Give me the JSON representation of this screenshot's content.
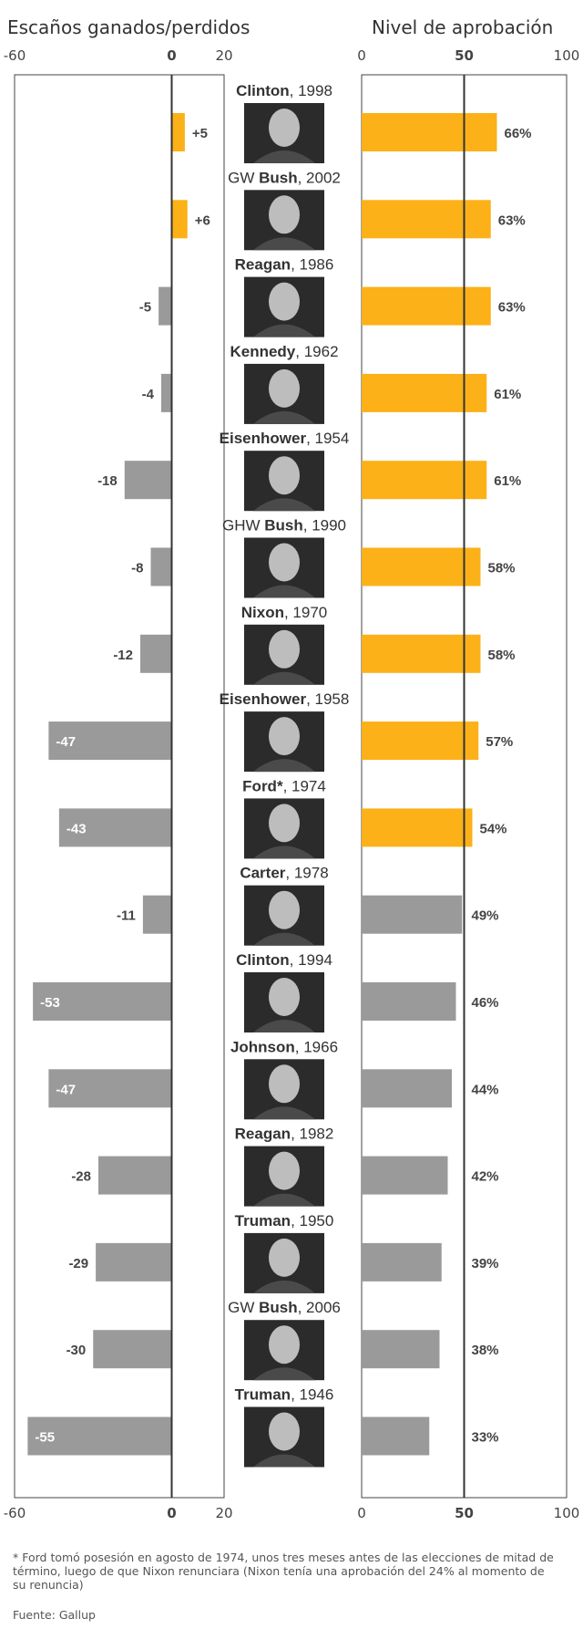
{
  "left_title": "Escaños ganados/perdidos",
  "right_title": "Nivel de aprobación",
  "left_ticks": [
    "-60",
    "0",
    "20"
  ],
  "right_ticks": [
    "0",
    "50",
    "100"
  ],
  "colors": {
    "above_50": "#fbb117",
    "below_50": "#9a9a9a",
    "axis": "#333333"
  },
  "chart_data": [
    {
      "type": "bar",
      "orientation": "horizontal",
      "title": "Escaños ganados/perdidos",
      "xlim": [
        -60,
        20
      ],
      "categories": [
        "Clinton, 1998",
        "GW Bush, 2002",
        "Reagan, 1986",
        "Kennedy, 1962",
        "Eisenhower, 1954",
        "GHW Bush, 1990",
        "Nixon, 1970",
        "Eisenhower, 1958",
        "Ford*, 1974",
        "Carter, 1978",
        "Clinton, 1994",
        "Johnson, 1966",
        "Reagan, 1982",
        "Truman, 1950",
        "GW Bush, 2006",
        "Truman, 1946"
      ],
      "values": [
        5,
        6,
        -5,
        -4,
        -18,
        -8,
        -12,
        -47,
        -43,
        -11,
        -53,
        -47,
        -28,
        -29,
        -30,
        -55
      ],
      "labels": [
        "+5",
        "+6",
        "-5",
        "-4",
        "-18",
        "-8",
        "-12",
        "-47",
        "-43",
        "-11",
        "-53",
        "-47",
        "-28",
        "-29",
        "-30",
        "-55"
      ]
    },
    {
      "type": "bar",
      "orientation": "horizontal",
      "title": "Nivel de aprobación",
      "xlim": [
        0,
        100
      ],
      "categories": [
        "Clinton, 1998",
        "GW Bush, 2002",
        "Reagan, 1986",
        "Kennedy, 1962",
        "Eisenhower, 1954",
        "GHW Bush, 1990",
        "Nixon, 1970",
        "Eisenhower, 1958",
        "Ford*, 1974",
        "Carter, 1978",
        "Clinton, 1994",
        "Johnson, 1966",
        "Reagan, 1982",
        "Truman, 1950",
        "GW Bush, 2006",
        "Truman, 1946"
      ],
      "values": [
        66,
        63,
        63,
        61,
        61,
        58,
        58,
        57,
        54,
        49,
        46,
        44,
        42,
        39,
        38,
        33
      ],
      "labels": [
        "66%",
        "63%",
        "63%",
        "61%",
        "61%",
        "58%",
        "58%",
        "57%",
        "54%",
        "49%",
        "46%",
        "44%",
        "42%",
        "39%",
        "38%",
        "33%"
      ]
    }
  ],
  "presidents": [
    {
      "name": "Clinton",
      "prefix": "",
      "suffix": "",
      "year": ", 1998"
    },
    {
      "name": "Bush",
      "prefix": "GW ",
      "suffix": "",
      "year": ", 2002"
    },
    {
      "name": "Reagan",
      "prefix": "",
      "suffix": "",
      "year": ", 1986"
    },
    {
      "name": "Kennedy",
      "prefix": "",
      "suffix": "",
      "year": ", 1962"
    },
    {
      "name": "Eisenhower",
      "prefix": "",
      "suffix": "",
      "year": ", 1954"
    },
    {
      "name": "Bush",
      "prefix": "GHW ",
      "suffix": "",
      "year": ", 1990"
    },
    {
      "name": "Nixon",
      "prefix": "",
      "suffix": "",
      "year": ", 1970"
    },
    {
      "name": "Eisenhower",
      "prefix": "",
      "suffix": "",
      "year": ", 1958"
    },
    {
      "name": "Ford*",
      "prefix": "",
      "suffix": "",
      "year": ", 1974"
    },
    {
      "name": "Carter",
      "prefix": "",
      "suffix": "",
      "year": ", 1978"
    },
    {
      "name": "Clinton",
      "prefix": "",
      "suffix": "",
      "year": ", 1994"
    },
    {
      "name": "Johnson",
      "prefix": "",
      "suffix": "",
      "year": ", 1966"
    },
    {
      "name": "Reagan",
      "prefix": "",
      "suffix": "",
      "year": ", 1982"
    },
    {
      "name": "Truman",
      "prefix": "",
      "suffix": "",
      "year": ", 1950"
    },
    {
      "name": "Bush",
      "prefix": "GW ",
      "suffix": "",
      "year": ", 2006"
    },
    {
      "name": "Truman",
      "prefix": "",
      "suffix": "",
      "year": ", 1946"
    }
  ],
  "footnote": "* Ford tomó posesión en agosto de 1974, unos tres meses antes de las elecciones de mitad de término,  luego de que Nixon renunciara  (Nixon tenía una aprobación del 24% al momento de su renuncia)",
  "source": "Fuente: Gallup"
}
